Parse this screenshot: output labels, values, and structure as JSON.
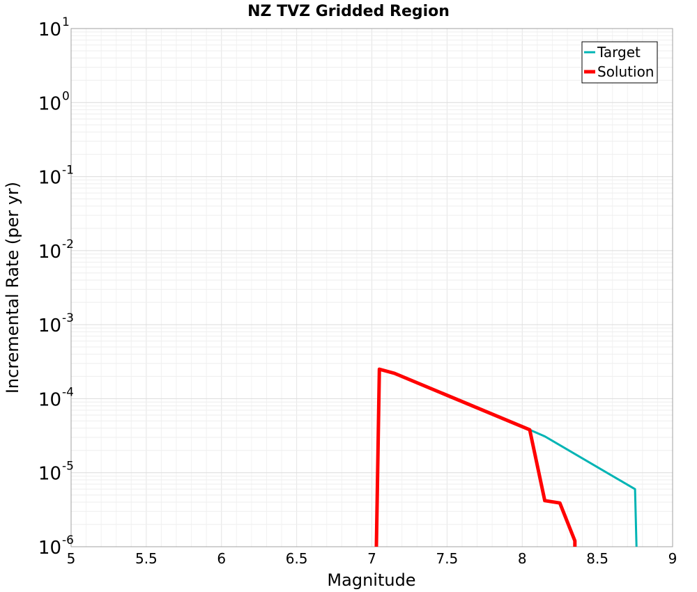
{
  "chart_data": {
    "type": "line",
    "title": "NZ TVZ Gridded Region",
    "xlabel": "Magnitude",
    "ylabel": "Incremental Rate (per yr)",
    "xlim": [
      5,
      9
    ],
    "ylim_log10": [
      -6,
      1
    ],
    "yscale": "log",
    "grid": true,
    "legend_position": "top-right",
    "x_ticks": [
      "5",
      "5.5",
      "6",
      "6.5",
      "7",
      "7.5",
      "8",
      "8.5",
      "9"
    ],
    "y_ticks": [
      {
        "base": "10",
        "exp": "1"
      },
      {
        "base": "10",
        "exp": "0"
      },
      {
        "base": "10",
        "exp": "-1"
      },
      {
        "base": "10",
        "exp": "-2"
      },
      {
        "base": "10",
        "exp": "-3"
      },
      {
        "base": "10",
        "exp": "-4"
      },
      {
        "base": "10",
        "exp": "-5"
      },
      {
        "base": "10",
        "exp": "-6"
      }
    ],
    "series": [
      {
        "name": "Target",
        "color": "#00b4b4",
        "x": [
          7.05,
          7.15,
          8.05,
          8.15,
          8.75,
          8.76
        ],
        "y": [
          0.00025,
          0.00022,
          3.8e-05,
          3.1e-05,
          6e-06,
          1e-06
        ]
      },
      {
        "name": "Solution",
        "color": "#ff0000",
        "x": [
          7.03,
          7.05,
          7.15,
          8.05,
          8.15,
          8.25,
          8.35,
          8.35
        ],
        "y": [
          1e-06,
          0.00025,
          0.00022,
          3.8e-05,
          4.2e-06,
          3.9e-06,
          1.2e-06,
          1e-06
        ]
      }
    ]
  }
}
